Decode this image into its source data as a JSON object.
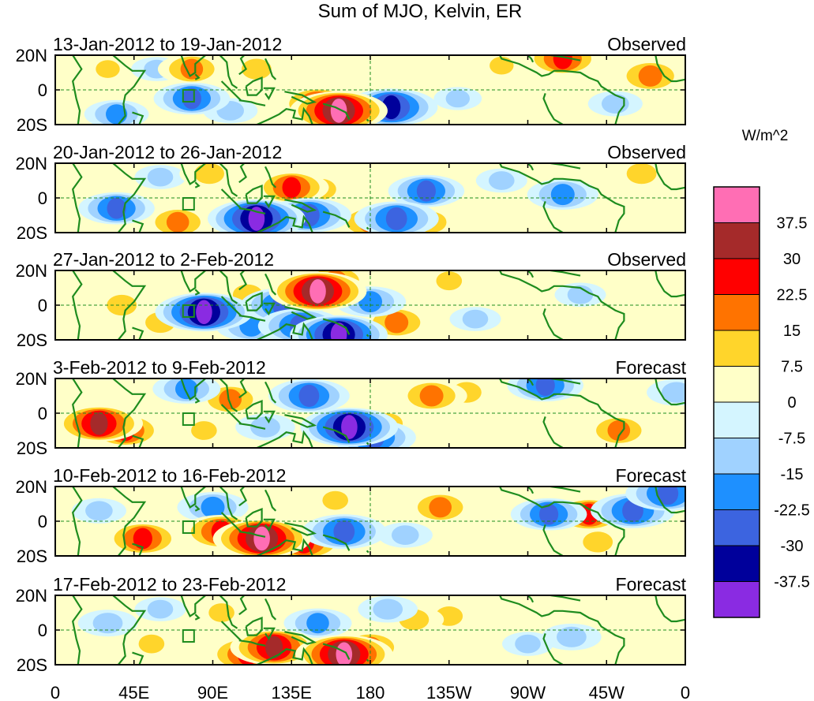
{
  "chart_data": {
    "type": "heatmap",
    "title": "Sum of MJO, Kelvin, ER",
    "units": "W/m^2",
    "x_ticks": [
      "0",
      "45E",
      "90E",
      "135E",
      "180",
      "135W",
      "90W",
      "45W",
      "0"
    ],
    "y_ticks": [
      "20N",
      "0",
      "20S"
    ],
    "x_range": [
      0,
      360
    ],
    "y_range": [
      -20,
      20
    ],
    "colorbar": {
      "labels": [
        "37.5",
        "30",
        "22.5",
        "15",
        "7.5",
        "0",
        "-7.5",
        "-15",
        "-22.5",
        "-30",
        "-37.5"
      ],
      "colors": [
        "#ff6eb4",
        "#a52a2a",
        "#ff0000",
        "#ff7300",
        "#ffd52b",
        "#ffffc8",
        "#d4f5ff",
        "#a0d2ff",
        "#1e90ff",
        "#3c64e0",
        "#00009b",
        "#8a2be2"
      ]
    },
    "panels": [
      {
        "date_range": "13-Jan-2012 to 19-Jan-2012",
        "label": "Observed",
        "anomalies": [
          {
            "lon": 78,
            "lat": 12,
            "value": 20
          },
          {
            "lon": 115,
            "lat": 12,
            "value": 15
          },
          {
            "lon": 290,
            "lat": 18,
            "value": 25
          },
          {
            "lon": 340,
            "lat": 8,
            "value": 22
          },
          {
            "lon": 150,
            "lat": -8,
            "value": 25
          },
          {
            "lon": 162,
            "lat": -12,
            "value": 38
          },
          {
            "lon": 185,
            "lat": -12,
            "value": 10
          },
          {
            "lon": 30,
            "lat": 12,
            "value": 8
          },
          {
            "lon": 255,
            "lat": 14,
            "value": 8
          },
          {
            "lon": 192,
            "lat": -10,
            "value": -35
          },
          {
            "lon": 78,
            "lat": -5,
            "value": -25
          },
          {
            "lon": 35,
            "lat": -14,
            "value": -18
          },
          {
            "lon": 100,
            "lat": -12,
            "value": -12
          },
          {
            "lon": 58,
            "lat": 12,
            "value": -10
          },
          {
            "lon": 320,
            "lat": -8,
            "value": -12
          },
          {
            "lon": 230,
            "lat": -5,
            "value": -8
          }
        ]
      },
      {
        "date_range": "20-Jan-2012 to 26-Jan-2012",
        "label": "Observed",
        "anomalies": [
          {
            "lon": 135,
            "lat": 6,
            "value": 24
          },
          {
            "lon": 152,
            "lat": 5,
            "value": 15
          },
          {
            "lon": 180,
            "lat": -14,
            "value": 22
          },
          {
            "lon": 215,
            "lat": -14,
            "value": 15
          },
          {
            "lon": 88,
            "lat": 14,
            "value": 15
          },
          {
            "lon": 335,
            "lat": 14,
            "value": 15
          },
          {
            "lon": 70,
            "lat": -14,
            "value": 20
          },
          {
            "lon": 35,
            "lat": -6,
            "value": -25
          },
          {
            "lon": 115,
            "lat": -12,
            "value": -38
          },
          {
            "lon": 145,
            "lat": -10,
            "value": -30
          },
          {
            "lon": 195,
            "lat": -12,
            "value": -30
          },
          {
            "lon": 212,
            "lat": 4,
            "value": -25
          },
          {
            "lon": 290,
            "lat": 2,
            "value": -22
          },
          {
            "lon": 255,
            "lat": 10,
            "value": -10
          },
          {
            "lon": 60,
            "lat": 12,
            "value": -10
          }
        ]
      },
      {
        "date_range": "27-Jan-2012 to 2-Feb-2012",
        "label": "Observed",
        "anomalies": [
          {
            "lon": 150,
            "lat": 8,
            "value": 38
          },
          {
            "lon": 160,
            "lat": 14,
            "value": 22
          },
          {
            "lon": 195,
            "lat": -10,
            "value": 22
          },
          {
            "lon": 110,
            "lat": 6,
            "value": 15
          },
          {
            "lon": 225,
            "lat": 14,
            "value": 10
          },
          {
            "lon": 38,
            "lat": 0,
            "value": 15
          },
          {
            "lon": 60,
            "lat": -10,
            "value": 15
          },
          {
            "lon": 85,
            "lat": -4,
            "value": -38
          },
          {
            "lon": 130,
            "lat": 0,
            "value": -30
          },
          {
            "lon": 162,
            "lat": -17,
            "value": -38
          },
          {
            "lon": 140,
            "lat": -12,
            "value": -30
          },
          {
            "lon": 180,
            "lat": 2,
            "value": -22
          },
          {
            "lon": 112,
            "lat": -12,
            "value": -22
          },
          {
            "lon": 240,
            "lat": -8,
            "value": -10
          },
          {
            "lon": 300,
            "lat": 6,
            "value": -10
          }
        ]
      },
      {
        "date_range": "3-Feb-2012 to 9-Feb-2012",
        "label": "Forecast",
        "anomalies": [
          {
            "lon": 25,
            "lat": -6,
            "value": 32
          },
          {
            "lon": 40,
            "lat": -10,
            "value": 25
          },
          {
            "lon": 100,
            "lat": 8,
            "value": 20
          },
          {
            "lon": 135,
            "lat": 12,
            "value": 15
          },
          {
            "lon": 215,
            "lat": 10,
            "value": 22
          },
          {
            "lon": 235,
            "lat": 12,
            "value": 15
          },
          {
            "lon": 190,
            "lat": -6,
            "value": 15
          },
          {
            "lon": 322,
            "lat": -10,
            "value": 20
          },
          {
            "lon": 85,
            "lat": -10,
            "value": 10
          },
          {
            "lon": 168,
            "lat": -8,
            "value": -38
          },
          {
            "lon": 182,
            "lat": -14,
            "value": -30
          },
          {
            "lon": 145,
            "lat": 10,
            "value": -28
          },
          {
            "lon": 75,
            "lat": 14,
            "value": -20
          },
          {
            "lon": 120,
            "lat": -8,
            "value": -15
          },
          {
            "lon": 280,
            "lat": 16,
            "value": -25
          },
          {
            "lon": 355,
            "lat": 12,
            "value": -15
          }
        ]
      },
      {
        "date_range": "10-Feb-2012 to 16-Feb-2012",
        "label": "Forecast",
        "anomalies": [
          {
            "lon": 118,
            "lat": -10,
            "value": 38
          },
          {
            "lon": 95,
            "lat": -6,
            "value": 28
          },
          {
            "lon": 142,
            "lat": -12,
            "value": 30
          },
          {
            "lon": 50,
            "lat": -10,
            "value": 25
          },
          {
            "lon": 220,
            "lat": 8,
            "value": 20
          },
          {
            "lon": 305,
            "lat": 4,
            "value": 25
          },
          {
            "lon": 160,
            "lat": 12,
            "value": 10
          },
          {
            "lon": 310,
            "lat": -12,
            "value": 15
          },
          {
            "lon": 90,
            "lat": 8,
            "value": -22
          },
          {
            "lon": 165,
            "lat": -6,
            "value": -30
          },
          {
            "lon": 282,
            "lat": 4,
            "value": -25
          },
          {
            "lon": 330,
            "lat": 6,
            "value": -30
          },
          {
            "lon": 350,
            "lat": 16,
            "value": -30
          },
          {
            "lon": 25,
            "lat": 6,
            "value": -12
          },
          {
            "lon": 200,
            "lat": -8,
            "value": -12
          }
        ]
      },
      {
        "date_range": "17-Feb-2012 to 23-Feb-2012",
        "label": "Forecast",
        "anomalies": [
          {
            "lon": 125,
            "lat": -10,
            "value": 32
          },
          {
            "lon": 110,
            "lat": -14,
            "value": 28
          },
          {
            "lon": 165,
            "lat": -14,
            "value": 38
          },
          {
            "lon": 180,
            "lat": -10,
            "value": 22
          },
          {
            "lon": 205,
            "lat": 6,
            "value": 15
          },
          {
            "lon": 225,
            "lat": 8,
            "value": 12
          },
          {
            "lon": 95,
            "lat": 10,
            "value": 10
          },
          {
            "lon": 55,
            "lat": -8,
            "value": 10
          },
          {
            "lon": 150,
            "lat": 4,
            "value": -20
          },
          {
            "lon": 190,
            "lat": 12,
            "value": -15
          },
          {
            "lon": 30,
            "lat": 4,
            "value": -15
          },
          {
            "lon": 295,
            "lat": -4,
            "value": -15
          },
          {
            "lon": 60,
            "lat": 12,
            "value": -10
          },
          {
            "lon": 270,
            "lat": -8,
            "value": -10
          }
        ]
      }
    ]
  }
}
